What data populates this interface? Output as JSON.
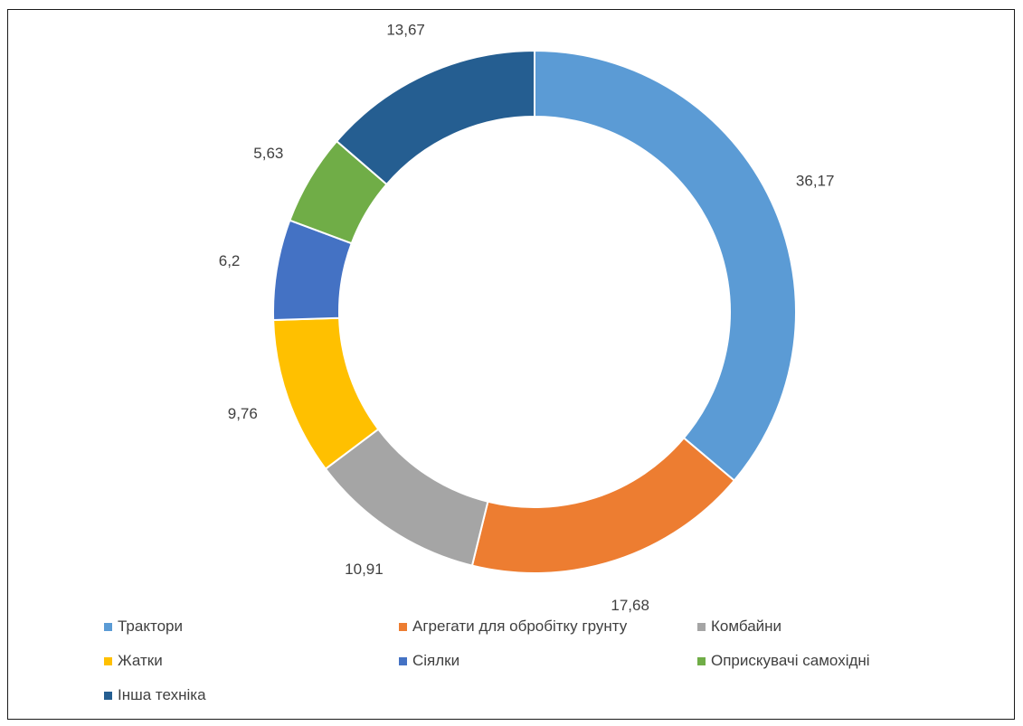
{
  "chart_data": {
    "type": "pie",
    "variant": "doughnut",
    "categories": [
      "Трактори",
      "Агрегати для обробітку грунту",
      "Комбайни",
      "Жатки",
      "Сіялки",
      "Оприскувачі самохідні",
      "Інша техніка"
    ],
    "values": [
      36.17,
      17.68,
      10.91,
      9.76,
      6.2,
      5.63,
      13.67
    ],
    "data_labels": [
      "36,17",
      "17,68",
      "10,91",
      "9,76",
      "6,2",
      "5,63",
      "13,67"
    ],
    "colors": [
      "#5b9bd5",
      "#ed7d31",
      "#a5a5a5",
      "#ffc000",
      "#4472c4",
      "#70ad47",
      "#255e91"
    ],
    "legend_position": "bottom",
    "title": ""
  }
}
